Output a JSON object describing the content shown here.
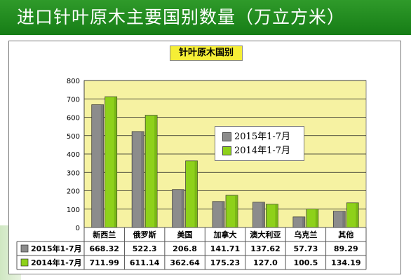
{
  "banner": {
    "title": "进口针叶原木主要国别数量（万立方米）"
  },
  "colors": {
    "series_2015": "#8c8c8c",
    "series_2014": "#8ed11a",
    "plot_bg": "#f6f2a2",
    "banner_bg": "#1f8a1f"
  },
  "chart_data": {
    "type": "bar",
    "title": "针叶原木国别",
    "categories": [
      "新西兰",
      "俄罗斯",
      "美国",
      "加拿大",
      "澳大利亚",
      "乌克兰",
      "其他"
    ],
    "series": [
      {
        "name": "2015年1-7月",
        "values": [
          668.32,
          522.3,
          206.8,
          141.71,
          137.62,
          57.73,
          89.29
        ],
        "value_labels": [
          "668.32",
          "522.3",
          "206.8",
          "141.71",
          "137.62",
          "57.73",
          "89.29"
        ]
      },
      {
        "name": "2014年1-7月",
        "values": [
          711.99,
          611.14,
          362.64,
          175.23,
          127.0,
          100.5,
          134.19
        ],
        "value_labels": [
          "711.99",
          "611.14",
          "362.64",
          "175.23",
          "127.0",
          "100.5",
          "134.19"
        ]
      }
    ],
    "ylim": [
      0,
      800
    ],
    "yticks": [
      0,
      100,
      200,
      300,
      400,
      500,
      600,
      700,
      800
    ],
    "grid": true,
    "legend": "right",
    "has_data_table": true
  }
}
